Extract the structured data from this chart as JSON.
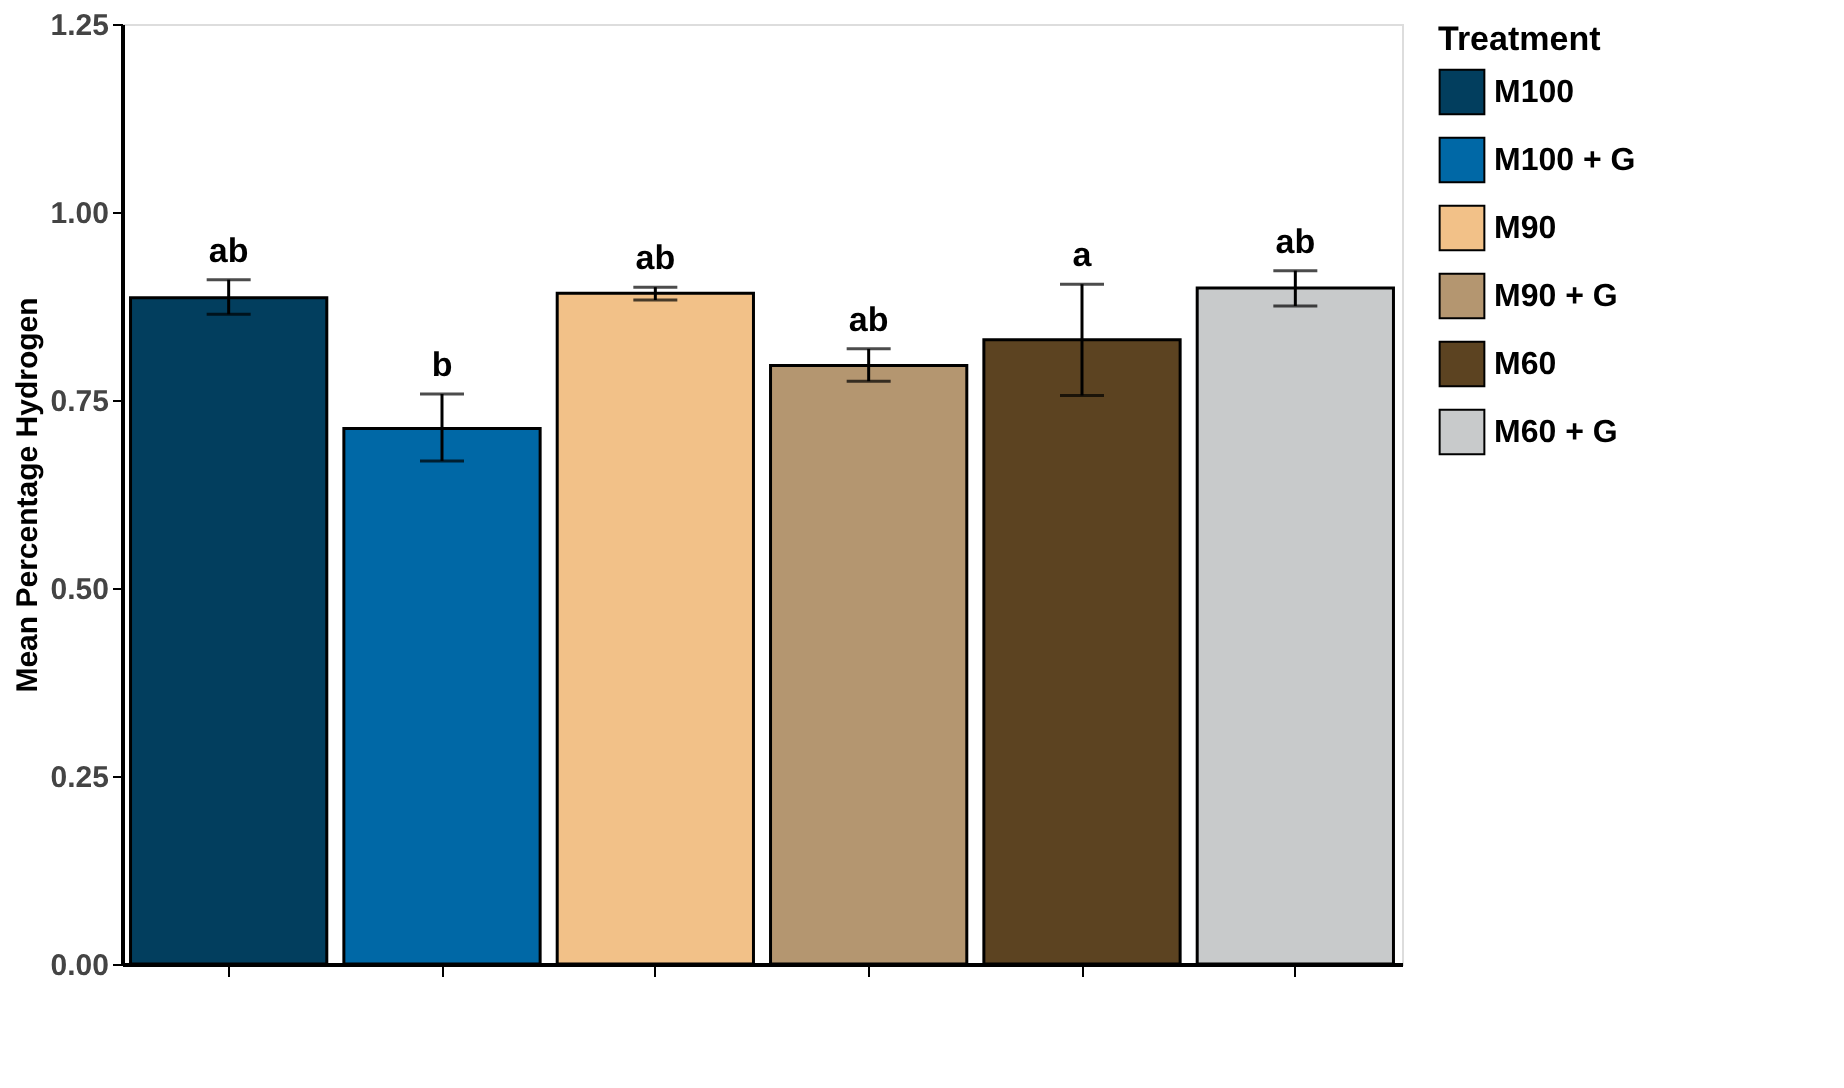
{
  "chart_data": {
    "type": "bar",
    "ylabel": "Mean Percentage Hydrogen",
    "legend_title": "Treatment",
    "categories": [
      null,
      null,
      null,
      null,
      null,
      null
    ],
    "series": [
      {
        "name": "M100",
        "color": "#023e5e",
        "values": [
          0.886,
          null,
          null,
          null,
          null,
          null
        ],
        "errors": [
          [
            0.864,
            0.91
          ],
          null,
          null,
          null,
          null,
          null
        ],
        "value_labels": [
          "ab",
          null,
          null,
          null,
          null,
          null
        ]
      },
      {
        "name": "M100 + G",
        "color": "#0068a6",
        "values": [
          null,
          0.712,
          null,
          null,
          null,
          null
        ],
        "errors": [
          null,
          [
            0.669,
            0.758
          ],
          null,
          null,
          null,
          null
        ],
        "value_labels": [
          null,
          "b",
          null,
          null,
          null,
          null
        ]
      },
      {
        "name": "M90",
        "color": "#f2c188",
        "values": [
          null,
          null,
          0.892,
          null,
          null,
          null
        ],
        "errors": [
          null,
          null,
          [
            0.883,
            0.9
          ],
          null,
          null,
          null
        ],
        "value_labels": [
          null,
          null,
          "ab",
          null,
          null,
          null
        ]
      },
      {
        "name": "M90 + G",
        "color": "#b49670",
        "values": [
          null,
          null,
          null,
          0.796,
          null,
          null
        ],
        "errors": [
          null,
          null,
          null,
          [
            0.775,
            0.818
          ],
          null,
          null
        ],
        "value_labels": [
          null,
          null,
          null,
          "ab",
          null,
          null
        ]
      },
      {
        "name": "M60",
        "color": "#5c4321",
        "values": [
          null,
          null,
          null,
          null,
          0.83,
          null
        ],
        "errors": [
          null,
          null,
          null,
          null,
          [
            0.756,
            0.904
          ],
          null
        ],
        "value_labels": [
          null,
          null,
          null,
          null,
          "a",
          null
        ]
      },
      {
        "name": "M60 + G",
        "color": "#c8cacb",
        "values": [
          null,
          null,
          null,
          null,
          null,
          0.899
        ],
        "errors": [
          null,
          null,
          null,
          null,
          null,
          [
            0.875,
            0.922
          ]
        ],
        "value_labels": [
          null,
          null,
          null,
          null,
          null,
          "ab"
        ]
      }
    ],
    "ylim": [
      0,
      1.25
    ],
    "yticks": [
      {
        "value": 0,
        "label": "0.00"
      },
      0.25,
      {
        "value": 0.5,
        "label": "0.50"
      },
      0.75,
      {
        "value": 1.0,
        "label": "1.00"
      },
      1.25
    ],
    "tick_labels": "y",
    "grid": false,
    "legend": "right"
  }
}
